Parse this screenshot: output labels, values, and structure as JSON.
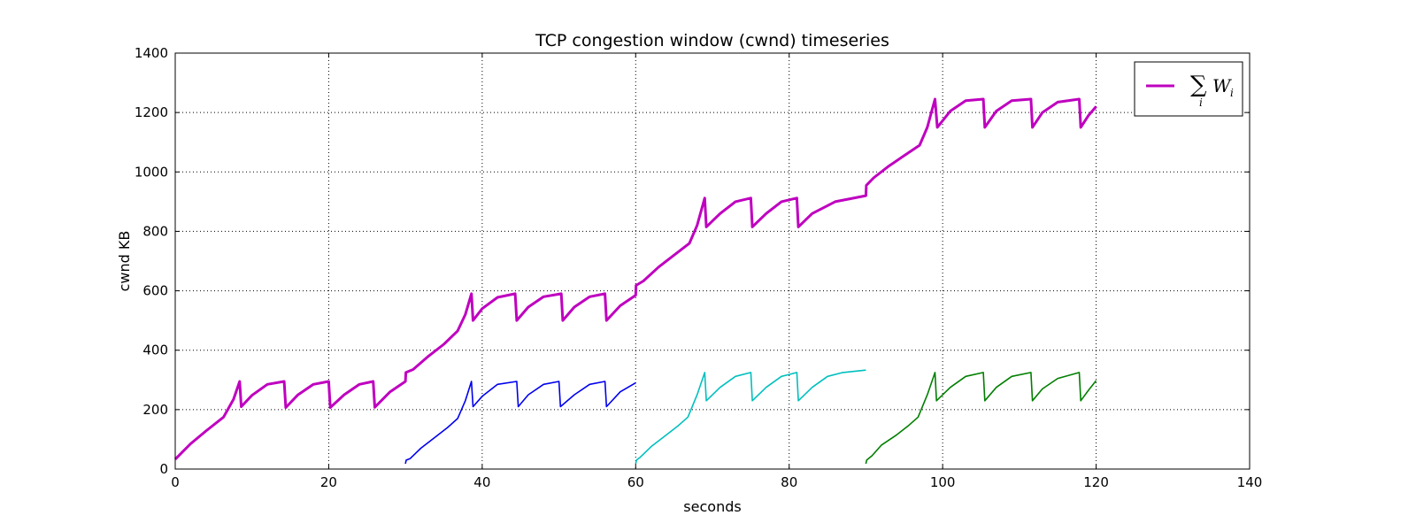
{
  "chart_data": {
    "type": "line",
    "title": "TCP congestion window (cwnd) timeseries",
    "xlabel": "seconds",
    "ylabel": "cwnd KB",
    "xlim": [
      0,
      140
    ],
    "ylim": [
      0,
      1400
    ],
    "xticks": [
      0,
      20,
      40,
      60,
      80,
      100,
      120,
      140
    ],
    "yticks": [
      0,
      200,
      400,
      600,
      800,
      1000,
      1200,
      1400
    ],
    "grid": true,
    "legend_position": "top-right",
    "legend": {
      "symbol": "∑",
      "subscript": "i",
      "var": "W",
      "var_sub": "i"
    },
    "series": [
      {
        "color": "#bf00bf",
        "width": "thick",
        "points": [
          [
            0,
            33
          ],
          [
            2,
            85
          ],
          [
            4,
            128
          ],
          [
            6.3,
            175
          ],
          [
            7.6,
            235
          ],
          [
            8.4,
            295
          ],
          [
            8.6,
            210
          ],
          [
            10,
            248
          ],
          [
            12,
            285
          ],
          [
            14.2,
            295
          ],
          [
            14.4,
            207
          ],
          [
            16,
            250
          ],
          [
            18,
            285
          ],
          [
            20,
            295
          ],
          [
            20.2,
            207
          ],
          [
            22,
            250
          ],
          [
            24,
            285
          ],
          [
            25.8,
            295
          ],
          [
            26,
            208
          ],
          [
            28,
            260
          ],
          [
            30,
            295
          ],
          [
            30.05,
            325
          ],
          [
            31,
            335
          ],
          [
            33,
            380
          ],
          [
            35,
            420
          ],
          [
            36.8,
            465
          ],
          [
            37.8,
            520
          ],
          [
            38.6,
            590
          ],
          [
            38.8,
            500
          ],
          [
            40,
            540
          ],
          [
            42,
            578
          ],
          [
            44.3,
            590
          ],
          [
            44.5,
            500
          ],
          [
            46,
            545
          ],
          [
            48,
            580
          ],
          [
            50.3,
            590
          ],
          [
            50.5,
            500
          ],
          [
            52,
            545
          ],
          [
            54,
            580
          ],
          [
            56,
            590
          ],
          [
            56.2,
            500
          ],
          [
            58,
            550
          ],
          [
            60,
            585
          ],
          [
            60.05,
            618
          ],
          [
            61,
            633
          ],
          [
            63,
            680
          ],
          [
            65,
            720
          ],
          [
            67,
            760
          ],
          [
            68,
            820
          ],
          [
            69,
            912
          ],
          [
            69.2,
            815
          ],
          [
            71,
            860
          ],
          [
            73,
            900
          ],
          [
            75,
            912
          ],
          [
            75.2,
            815
          ],
          [
            77,
            860
          ],
          [
            79,
            900
          ],
          [
            81,
            912
          ],
          [
            81.2,
            815
          ],
          [
            83,
            860
          ],
          [
            86,
            900
          ],
          [
            88,
            910
          ],
          [
            90,
            920
          ],
          [
            90.05,
            955
          ],
          [
            91,
            980
          ],
          [
            93,
            1020
          ],
          [
            95,
            1055
          ],
          [
            97,
            1090
          ],
          [
            98,
            1150
          ],
          [
            99,
            1245
          ],
          [
            99.3,
            1150
          ],
          [
            101,
            1205
          ],
          [
            103,
            1240
          ],
          [
            105.3,
            1245
          ],
          [
            105.5,
            1150
          ],
          [
            107,
            1205
          ],
          [
            109,
            1240
          ],
          [
            111.5,
            1245
          ],
          [
            111.7,
            1150
          ],
          [
            113,
            1200
          ],
          [
            115,
            1235
          ],
          [
            117.8,
            1245
          ],
          [
            118,
            1150
          ],
          [
            119,
            1190
          ],
          [
            120,
            1220
          ]
        ]
      },
      {
        "color": "#0000ee",
        "width": "thin",
        "points": [
          [
            30,
            18
          ],
          [
            30.1,
            30
          ],
          [
            30.6,
            35
          ],
          [
            32,
            70
          ],
          [
            34,
            110
          ],
          [
            35.5,
            140
          ],
          [
            36.8,
            170
          ],
          [
            37.8,
            230
          ],
          [
            38.6,
            295
          ],
          [
            38.8,
            210
          ],
          [
            40,
            245
          ],
          [
            42,
            285
          ],
          [
            44.5,
            295
          ],
          [
            44.7,
            210
          ],
          [
            46,
            250
          ],
          [
            48,
            285
          ],
          [
            50,
            295
          ],
          [
            50.2,
            210
          ],
          [
            52,
            250
          ],
          [
            54,
            285
          ],
          [
            56,
            295
          ],
          [
            56.2,
            210
          ],
          [
            58,
            260
          ],
          [
            60,
            290
          ]
        ]
      },
      {
        "color": "#00bfbf",
        "width": "thin",
        "points": [
          [
            60,
            18
          ],
          [
            60.1,
            30
          ],
          [
            60.6,
            40
          ],
          [
            62,
            75
          ],
          [
            64,
            115
          ],
          [
            65.5,
            145
          ],
          [
            66.8,
            175
          ],
          [
            68,
            250
          ],
          [
            69,
            325
          ],
          [
            69.2,
            230
          ],
          [
            71,
            275
          ],
          [
            73,
            312
          ],
          [
            75,
            325
          ],
          [
            75.2,
            230
          ],
          [
            77,
            275
          ],
          [
            79,
            312
          ],
          [
            81,
            325
          ],
          [
            81.2,
            230
          ],
          [
            83,
            275
          ],
          [
            85,
            312
          ],
          [
            87,
            325
          ],
          [
            90,
            333
          ]
        ]
      },
      {
        "color": "#007f00",
        "width": "thin",
        "points": [
          [
            90,
            18
          ],
          [
            90.1,
            30
          ],
          [
            90.8,
            45
          ],
          [
            92,
            80
          ],
          [
            94,
            115
          ],
          [
            95.5,
            145
          ],
          [
            96.8,
            175
          ],
          [
            98,
            250
          ],
          [
            99,
            325
          ],
          [
            99.2,
            230
          ],
          [
            101,
            275
          ],
          [
            103,
            312
          ],
          [
            105.3,
            325
          ],
          [
            105.5,
            230
          ],
          [
            107,
            275
          ],
          [
            109,
            312
          ],
          [
            111.5,
            325
          ],
          [
            111.7,
            230
          ],
          [
            113,
            270
          ],
          [
            115,
            305
          ],
          [
            117.8,
            325
          ],
          [
            118,
            230
          ],
          [
            119,
            265
          ],
          [
            120,
            298
          ]
        ]
      }
    ]
  }
}
